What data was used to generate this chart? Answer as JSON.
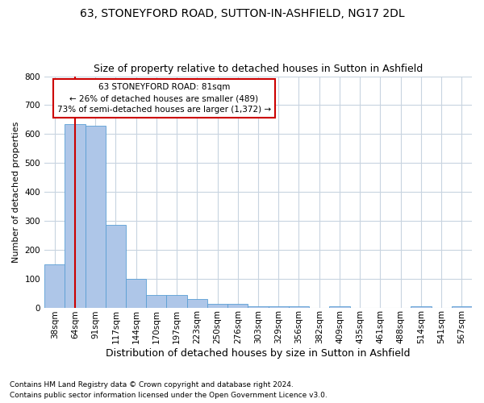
{
  "title1": "63, STONEYFORD ROAD, SUTTON-IN-ASHFIELD, NG17 2DL",
  "title2": "Size of property relative to detached houses in Sutton in Ashfield",
  "xlabel": "Distribution of detached houses by size in Sutton in Ashfield",
  "ylabel": "Number of detached properties",
  "footnote1": "Contains HM Land Registry data © Crown copyright and database right 2024.",
  "footnote2": "Contains public sector information licensed under the Open Government Licence v3.0.",
  "bar_labels": [
    "38sqm",
    "64sqm",
    "91sqm",
    "117sqm",
    "144sqm",
    "170sqm",
    "197sqm",
    "223sqm",
    "250sqm",
    "276sqm",
    "303sqm",
    "329sqm",
    "356sqm",
    "382sqm",
    "409sqm",
    "435sqm",
    "461sqm",
    "488sqm",
    "514sqm",
    "541sqm",
    "567sqm"
  ],
  "bar_values": [
    150,
    635,
    630,
    285,
    100,
    42,
    42,
    28,
    12,
    12,
    5,
    5,
    5,
    0,
    5,
    0,
    0,
    0,
    5,
    0,
    5
  ],
  "bar_color": "#aec6e8",
  "bar_edge_color": "#5a9fd4",
  "vline_x": 1,
  "vline_color": "#cc0000",
  "annotation_text": "63 STONEYFORD ROAD: 81sqm\n← 26% of detached houses are smaller (489)\n73% of semi-detached houses are larger (1,372) →",
  "annotation_box_color": "#ffffff",
  "annotation_box_edge": "#cc0000",
  "ylim": [
    0,
    800
  ],
  "yticks": [
    0,
    100,
    200,
    300,
    400,
    500,
    600,
    700,
    800
  ],
  "background_color": "#ffffff",
  "grid_color": "#c8d4e0",
  "title1_fontsize": 10,
  "title2_fontsize": 9,
  "xlabel_fontsize": 9,
  "ylabel_fontsize": 8,
  "tick_fontsize": 7.5,
  "annotation_fontsize": 7.5,
  "footnote_fontsize": 6.5
}
